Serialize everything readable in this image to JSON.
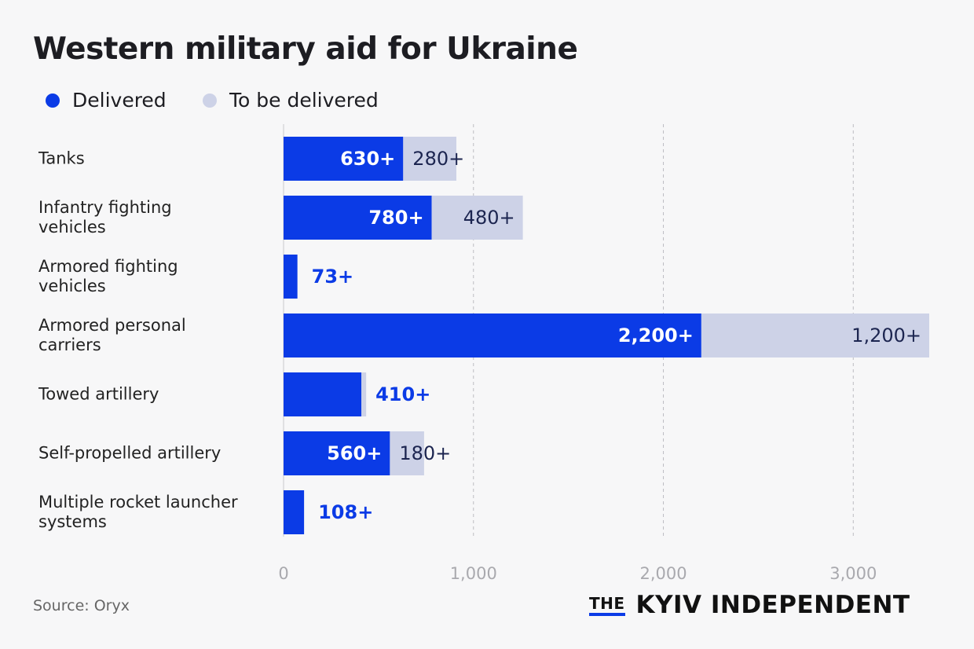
{
  "chart_data": {
    "type": "stacked-bar-horizontal",
    "title": "Western military aid for Ukraine",
    "categories": [
      "Tanks",
      "Infantry fighting\nvehicles",
      "Armored fighting\nvehicles",
      "Armored personal\ncarriers",
      "Towed artillery",
      "Self-propelled artillery",
      "Multiple rocket launcher\nsystems"
    ],
    "series": [
      {
        "name": "Delivered",
        "color": "#0b3be6",
        "label_color": "#ffffff",
        "values": [
          630,
          780,
          73,
          2200,
          410,
          560,
          108
        ],
        "value_labels": [
          "630+",
          "780+",
          "73+",
          "2,200+",
          "410+",
          "560+",
          "108+"
        ]
      },
      {
        "name": "To be delivered",
        "color": "#cdd2e7",
        "label_color": "#1c2550",
        "values": [
          280,
          480,
          null,
          1200,
          25,
          180,
          null
        ],
        "value_labels": [
          "280+",
          "480+",
          null,
          "1,200+",
          null,
          "180+",
          null
        ]
      }
    ],
    "xlim": [
      0,
      3400
    ],
    "xticks": [
      0,
      {
        "value": 1000,
        "label": "1,000"
      },
      {
        "value": 2000,
        "label": "2,000"
      },
      {
        "value": 3000,
        "label": "3,000"
      }
    ],
    "grid": true,
    "source": "Source: Oryx",
    "logo": {
      "the": "THE",
      "name": "KYIV INDEPENDENT"
    }
  }
}
